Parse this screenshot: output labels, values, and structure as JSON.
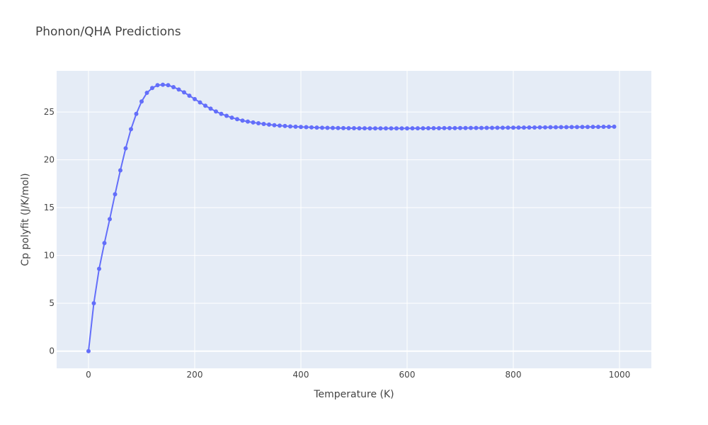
{
  "chart_data": {
    "type": "line",
    "mode": "lines+markers",
    "title": "Phonon/QHA Predictions",
    "xlabel": "Temperature (K)",
    "ylabel": "Cp polyfit (J/K/mol)",
    "xlim": [
      -60,
      1060
    ],
    "ylim": [
      -1.8,
      29.3
    ],
    "xticks": [
      0,
      200,
      400,
      600,
      800,
      1000
    ],
    "yticks": [
      0,
      5,
      10,
      15,
      20,
      25
    ],
    "grid": true,
    "colors": {
      "plot_bg": "#e5ecf6",
      "series": "#636efa",
      "grid": "#ffffff"
    },
    "series": [
      {
        "x": [
          0,
          10,
          20,
          30,
          40,
          50,
          60,
          70,
          80,
          90,
          100,
          110,
          120,
          130,
          140,
          150,
          160,
          170,
          180,
          190,
          200,
          210,
          220,
          230,
          240,
          250,
          260,
          270,
          280,
          290,
          300,
          310,
          320,
          330,
          340,
          350,
          360,
          370,
          380,
          390,
          400,
          410,
          420,
          430,
          440,
          450,
          460,
          470,
          480,
          490,
          500,
          510,
          520,
          530,
          540,
          550,
          560,
          570,
          580,
          590,
          600,
          610,
          620,
          630,
          640,
          650,
          660,
          670,
          680,
          690,
          700,
          710,
          720,
          730,
          740,
          750,
          760,
          770,
          780,
          790,
          800,
          810,
          820,
          830,
          840,
          850,
          860,
          870,
          880,
          890,
          900,
          910,
          920,
          930,
          940,
          950,
          960,
          970,
          980,
          990
        ],
        "y": [
          0,
          5.0,
          8.6,
          11.3,
          13.8,
          16.4,
          18.9,
          21.2,
          23.2,
          24.8,
          26.1,
          27.0,
          27.5,
          27.8,
          27.85,
          27.8,
          27.6,
          27.35,
          27.05,
          26.7,
          26.35,
          26.0,
          25.65,
          25.35,
          25.05,
          24.8,
          24.6,
          24.4,
          24.25,
          24.1,
          24.0,
          23.9,
          23.82,
          23.75,
          23.68,
          23.62,
          23.57,
          23.53,
          23.49,
          23.46,
          23.43,
          23.41,
          23.39,
          23.37,
          23.35,
          23.34,
          23.33,
          23.32,
          23.31,
          23.3,
          23.3,
          23.29,
          23.29,
          23.28,
          23.28,
          23.28,
          23.28,
          23.28,
          23.28,
          23.28,
          23.28,
          23.29,
          23.29,
          23.29,
          23.3,
          23.3,
          23.3,
          23.31,
          23.31,
          23.31,
          23.32,
          23.32,
          23.33,
          23.33,
          23.33,
          23.34,
          23.34,
          23.35,
          23.35,
          23.36,
          23.36,
          23.37,
          23.37,
          23.38,
          23.38,
          23.39,
          23.39,
          23.4,
          23.4,
          23.41,
          23.41,
          23.42,
          23.42,
          23.43,
          23.43,
          23.44,
          23.44,
          23.45,
          23.45,
          23.46
        ]
      }
    ]
  }
}
